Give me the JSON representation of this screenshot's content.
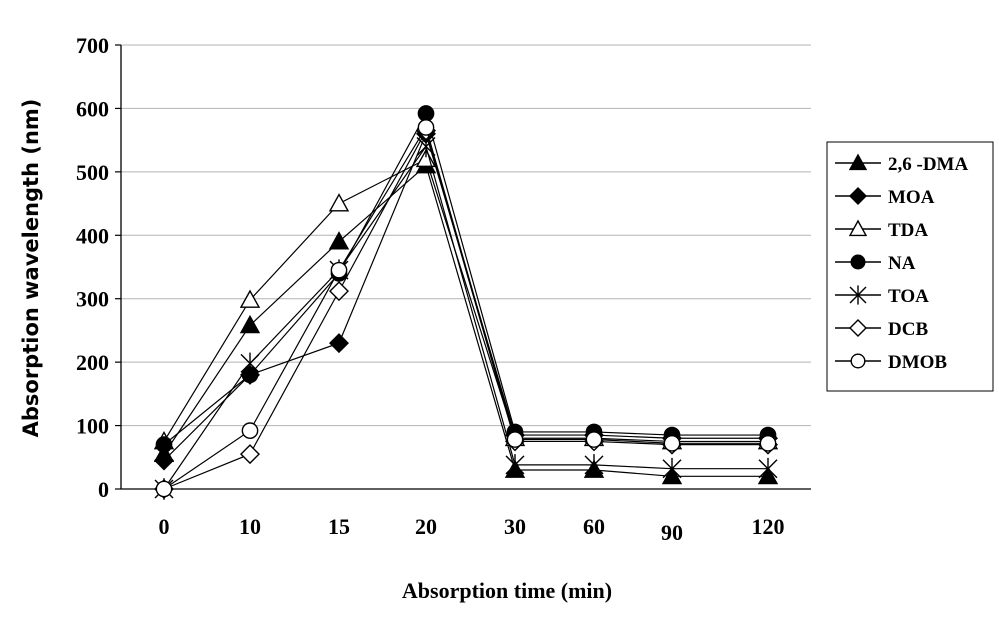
{
  "chart_data": {
    "type": "line",
    "title": "",
    "xlabel": "Absorption time (min)",
    "ylabel": "Absorption wavelength (nm)",
    "categories": [
      "0",
      "10",
      "15",
      "20",
      "30",
      "60",
      "90",
      "120"
    ],
    "ylim": [
      0,
      700
    ],
    "yticks": [
      "0",
      "100",
      "200",
      "300",
      "400",
      "500",
      "600",
      "700"
    ],
    "grid": true,
    "legend_position": "right",
    "series": [
      {
        "name": "2,6 -DMA",
        "marker": "filled-triangle",
        "values": [
          55,
          258,
          390,
          510,
          30,
          30,
          20,
          20
        ]
      },
      {
        "name": "MOA",
        "marker": "filled-diamond",
        "values": [
          45,
          180,
          230,
          560,
          85,
          85,
          80,
          80
        ]
      },
      {
        "name": "TDA",
        "marker": "open-triangle",
        "values": [
          75,
          298,
          450,
          520,
          80,
          80,
          75,
          75
        ]
      },
      {
        "name": "NA",
        "marker": "filled-circle",
        "values": [
          70,
          180,
          340,
          592,
          90,
          90,
          85,
          85
        ]
      },
      {
        "name": "TOA",
        "marker": "star",
        "values": [
          0,
          198,
          345,
          540,
          38,
          38,
          32,
          32
        ]
      },
      {
        "name": "DCB",
        "marker": "open-diamond",
        "values": [
          0,
          55,
          312,
          565,
          75,
          75,
          70,
          70
        ]
      },
      {
        "name": "DMOB",
        "marker": "open-circle",
        "values": [
          0,
          92,
          345,
          570,
          78,
          78,
          72,
          72
        ]
      }
    ]
  }
}
